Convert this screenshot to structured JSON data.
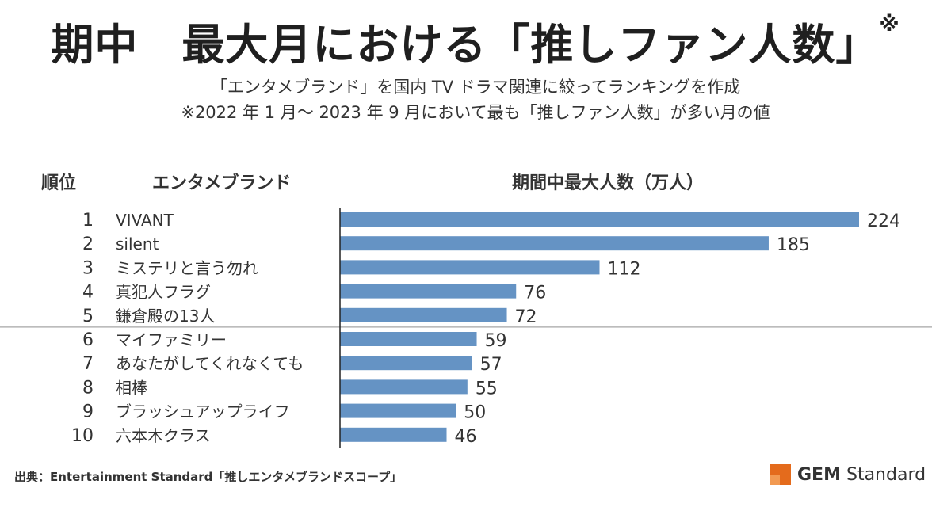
{
  "title": {
    "main": "期中　最大月における「推しファン人数」",
    "mark": "※"
  },
  "subtitle": {
    "line1": "「エンタメブランド」を国内 TV ドラマ関連に絞ってランキングを作成",
    "line2": "※2022 年 1 月～ 2023 年 9 月において最も「推しファン人数」が多い月の値"
  },
  "columns": {
    "rank": "順位",
    "brand": "エンタメブランド",
    "value": "期間中最大人数（万人）"
  },
  "colors": {
    "bar": "#6593c4",
    "axis": "#222222",
    "separator": "#a6a6a6",
    "logo": "#e46b1c"
  },
  "chart_data": {
    "type": "bar",
    "orientation": "horizontal",
    "categories": [
      "VIVANT",
      "silent",
      "ミステリと言う勿れ",
      "真犯人フラグ",
      "鎌倉殿の13人",
      "マイファミリー",
      "あなたがしてくれなくても",
      "相棒",
      "ブラッシュアップライフ",
      "六本木クラス"
    ],
    "ranks": [
      "1",
      "2",
      "3",
      "4",
      "5",
      "6",
      "7",
      "8",
      "9",
      "10"
    ],
    "values": [
      224,
      185,
      112,
      76,
      72,
      59,
      57,
      55,
      50,
      46
    ],
    "xlim": [
      0,
      224
    ],
    "grid": false
  },
  "footer": {
    "source": "出典：Entertainment Standard「推しエンタメブランドスコープ」",
    "logo_bold": "GEM",
    "logo_rest": " Standard"
  }
}
